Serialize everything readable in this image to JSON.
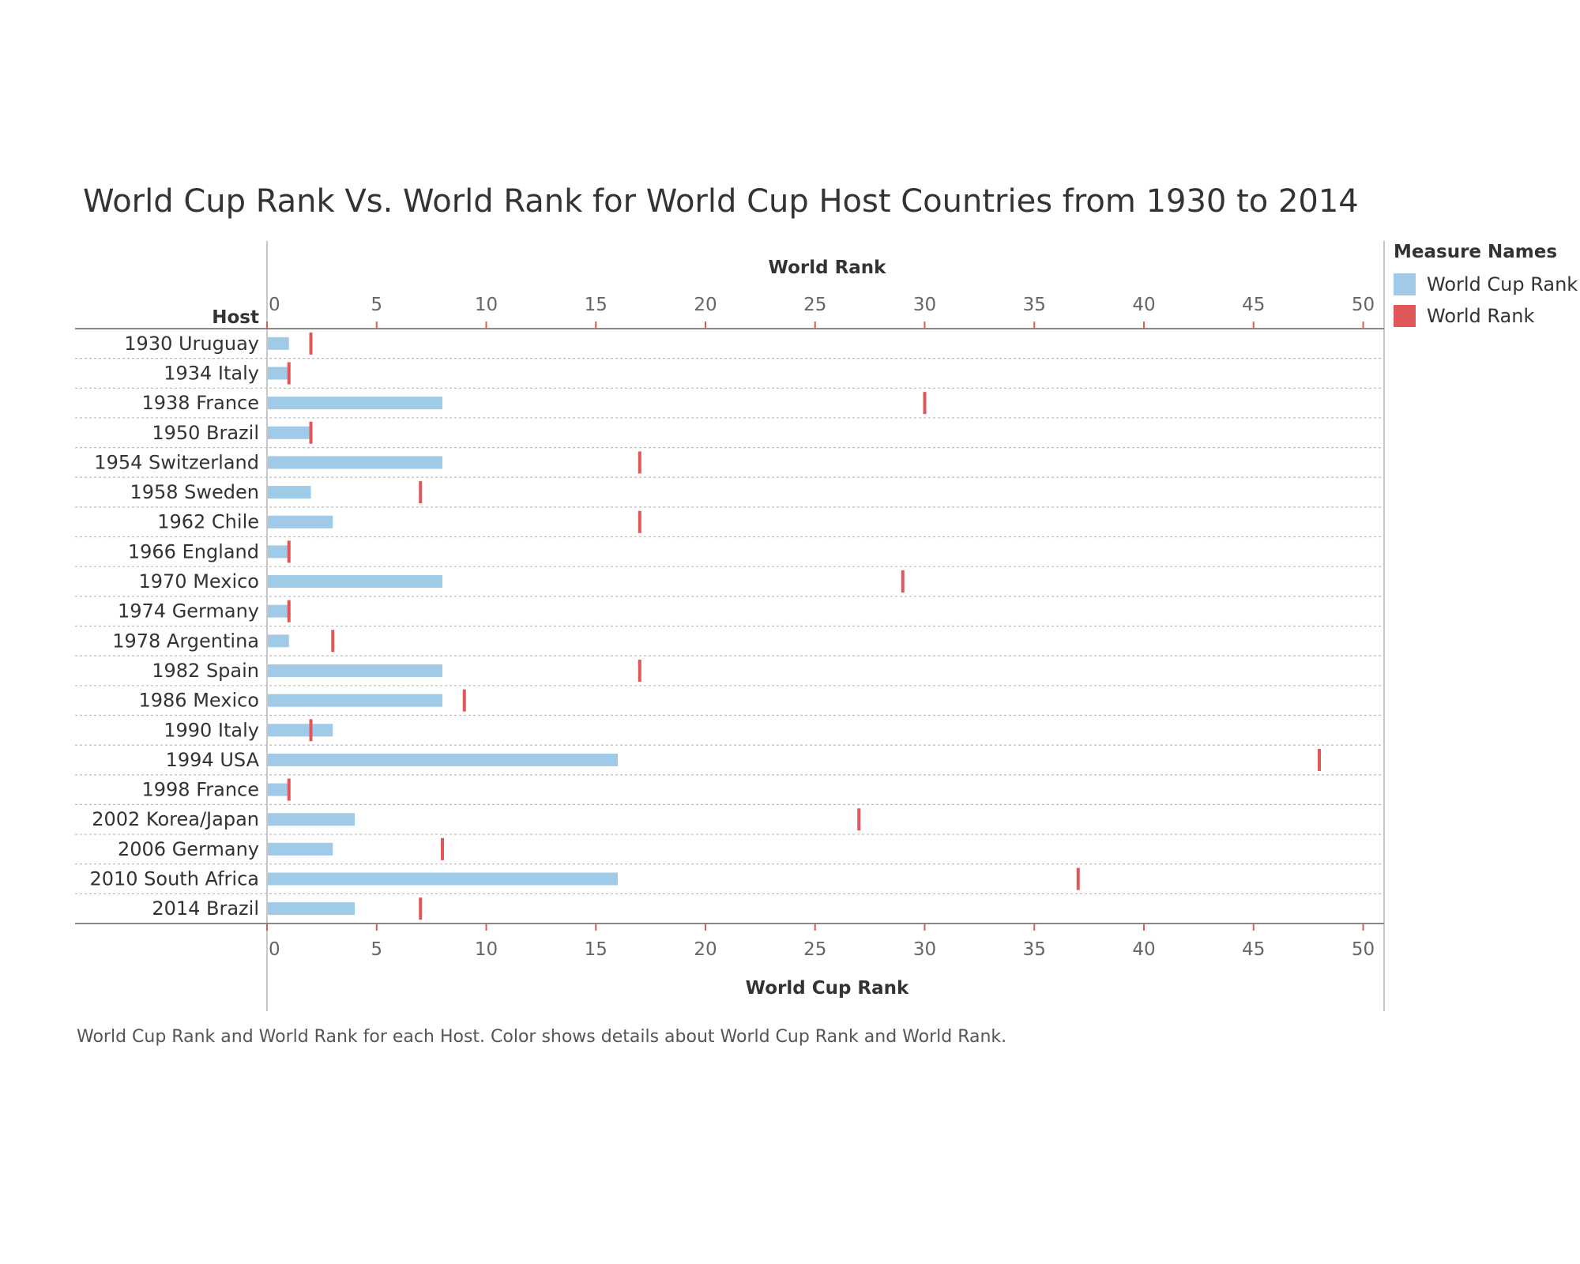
{
  "title": "World Cup Rank Vs. World Rank for World Cup Host Countries from 1930 to 2014",
  "caption": "World Cup Rank and World Rank for each Host.  Color shows details about World Cup Rank and World Rank.",
  "legend": {
    "title": "Measure Names",
    "items": [
      {
        "label": "World Cup Rank",
        "color": "#9fcae8"
      },
      {
        "label": "World Rank",
        "color": "#e15759"
      }
    ]
  },
  "chart_data": {
    "type": "bar",
    "row_header": "Host",
    "top_axis_title": "World Rank",
    "bottom_axis_title": "World Cup Rank",
    "xlim": [
      0,
      50
    ],
    "ticks": [
      0,
      5,
      10,
      15,
      20,
      25,
      30,
      35,
      40,
      45,
      50
    ],
    "categories": [
      "1930 Uruguay",
      "1934 Italy",
      "1938 France",
      "1950 Brazil",
      "1954 Switzerland",
      "1958 Sweden",
      "1962 Chile",
      "1966 England",
      "1970 Mexico",
      "1974 Germany",
      "1978 Argentina",
      "1982 Spain",
      "1986 Mexico",
      "1990 Italy",
      "1994 USA",
      "1998 France",
      "2002 Korea/Japan",
      "2006 Germany",
      "2010 South Africa",
      "2014 Brazil"
    ],
    "series": [
      {
        "name": "World Cup Rank",
        "type": "bar",
        "values": [
          1,
          1,
          8,
          2,
          8,
          2,
          3,
          1,
          8,
          1,
          1,
          8,
          8,
          3,
          16,
          1,
          4,
          3,
          16,
          4
        ]
      },
      {
        "name": "World Rank",
        "type": "tick",
        "values": [
          2,
          1,
          30,
          2,
          17,
          7,
          17,
          1,
          29,
          1,
          3,
          17,
          9,
          2,
          48,
          1,
          27,
          8,
          37,
          7
        ]
      }
    ]
  }
}
